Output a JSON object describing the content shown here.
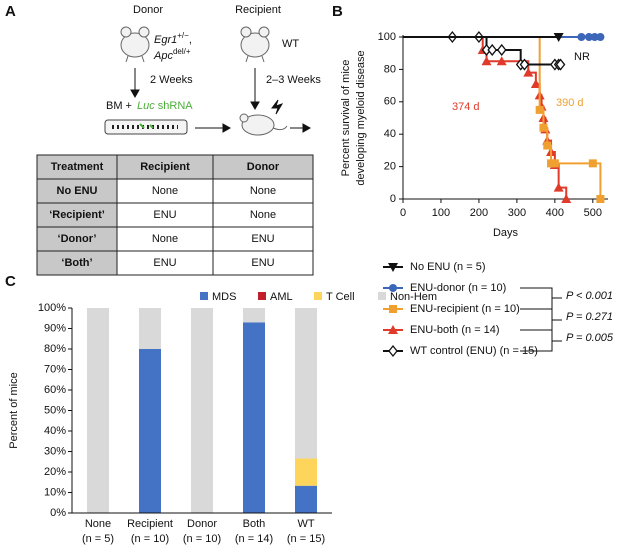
{
  "panel_labels": [
    "A",
    "B",
    "C"
  ],
  "diagram": {
    "donor_title": "Donor",
    "recipient_title": "Recipient",
    "donor_genotype": [
      "Egr1",
      "+/−",
      ",",
      "Apc",
      "del/+"
    ],
    "recipient_genotype": "WT",
    "donor_interval": "2 Weeks",
    "recipient_interval": "2–3 Weeks",
    "bm_label": "BM +",
    "shrna_label": [
      "Luc",
      " shRNA"
    ]
  },
  "table": {
    "header": [
      "Treatment",
      "Recipient",
      "Donor"
    ],
    "rows": [
      [
        "No ENU",
        "None",
        "None"
      ],
      [
        "‘Recipient’",
        "ENU",
        "None"
      ],
      [
        "‘Donor’",
        "None",
        "ENU"
      ],
      [
        "‘Both’",
        "ENU",
        "ENU"
      ]
    ]
  },
  "chart_data": [
    {
      "type": "step-line",
      "ylabel": [
        "Percent survival of mice",
        "developing myeloid disease"
      ],
      "xlabel": "Days",
      "xlim": [
        0,
        540
      ],
      "xticks": [
        0,
        100,
        200,
        300,
        400,
        500
      ],
      "ylim": [
        0,
        100
      ],
      "yticks": [
        0,
        20,
        40,
        60,
        80,
        100
      ],
      "series": [
        {
          "name": "No ENU (n = 5)",
          "color": "#111111",
          "marker": "triangle-down",
          "x": [
            0,
            410
          ],
          "values": [
            100,
            100
          ]
        },
        {
          "name": "ENU-donor (n = 10)",
          "color": "#3c66b8",
          "marker": "circle",
          "x": [
            0,
            470,
            490,
            505,
            520
          ],
          "values": [
            100,
            100,
            100,
            100,
            100
          ]
        },
        {
          "name": "ENU-recipient (n = 10)",
          "color": "#f0a030",
          "marker": "square",
          "x": [
            0,
            360,
            370,
            380,
            390,
            400,
            500,
            520
          ],
          "values": [
            100,
            55,
            44,
            33,
            22,
            22,
            22,
            0
          ]
        },
        {
          "name": "ENU-both (n = 14)",
          "color": "#e03a2a",
          "marker": "triangle",
          "x": [
            0,
            210,
            220,
            260,
            330,
            350,
            360,
            365,
            370,
            375,
            380,
            390,
            400,
            410,
            430
          ],
          "values": [
            100,
            92,
            85,
            85,
            78,
            71,
            64,
            57,
            50,
            43,
            36,
            29,
            21,
            7,
            0
          ]
        },
        {
          "name": "WT control (ENU) (n = 15)",
          "color": "#111111",
          "marker": "diamond",
          "x": [
            0,
            130,
            200,
            220,
            235,
            260,
            310,
            320,
            400,
            410,
            415
          ],
          "values": [
            100,
            100,
            100,
            92,
            92,
            92,
            83,
            83,
            83,
            83,
            83
          ]
        }
      ],
      "annotations": [
        {
          "text": "NR",
          "color": "#111111"
        },
        {
          "text": "374 d",
          "color": "#e03a2a"
        },
        {
          "text": "390 d",
          "color": "#f0a030"
        }
      ],
      "p_values": [
        "P < 0.001",
        "P = 0.271",
        "P = 0.005"
      ]
    },
    {
      "type": "stacked-bar",
      "ylabel": "Percent of mice",
      "legend": "top",
      "categories": [
        "None",
        "Recipient",
        "Donor",
        "Both",
        "WT"
      ],
      "category_notes": [
        "(n = 5)",
        "(n = 10)",
        "(n = 10)",
        "(n = 14)",
        "(n = 15)"
      ],
      "ylim": [
        0,
        100
      ],
      "yticks": [
        {
          "value": 0,
          "label": "0%"
        },
        {
          "value": 10,
          "label": "10%"
        },
        {
          "value": 20,
          "label": "20%"
        },
        {
          "value": 30,
          "label": "30%"
        },
        {
          "value": 40,
          "label": "40%"
        },
        {
          "value": 50,
          "label": "50%"
        },
        {
          "value": 60,
          "label": "60%"
        },
        {
          "value": 70,
          "label": "70%"
        },
        {
          "value": 80,
          "label": "80%"
        },
        {
          "value": 90,
          "label": "90%"
        },
        {
          "value": 100,
          "label": "100%"
        }
      ],
      "series": [
        {
          "name": "MDS",
          "color": "#4472c4",
          "values": [
            0,
            80,
            0,
            93,
            13.3
          ]
        },
        {
          "name": "AML",
          "color": "#c0202a",
          "values": [
            0,
            0,
            0,
            0,
            0
          ]
        },
        {
          "name": "T Cell",
          "color": "#fcd55a",
          "values": [
            0,
            0,
            0,
            0,
            13.3
          ]
        },
        {
          "name": "Non-Hem",
          "color": "#d9d9d9",
          "values": [
            100,
            20,
            100,
            7,
            73.4
          ]
        }
      ]
    }
  ]
}
